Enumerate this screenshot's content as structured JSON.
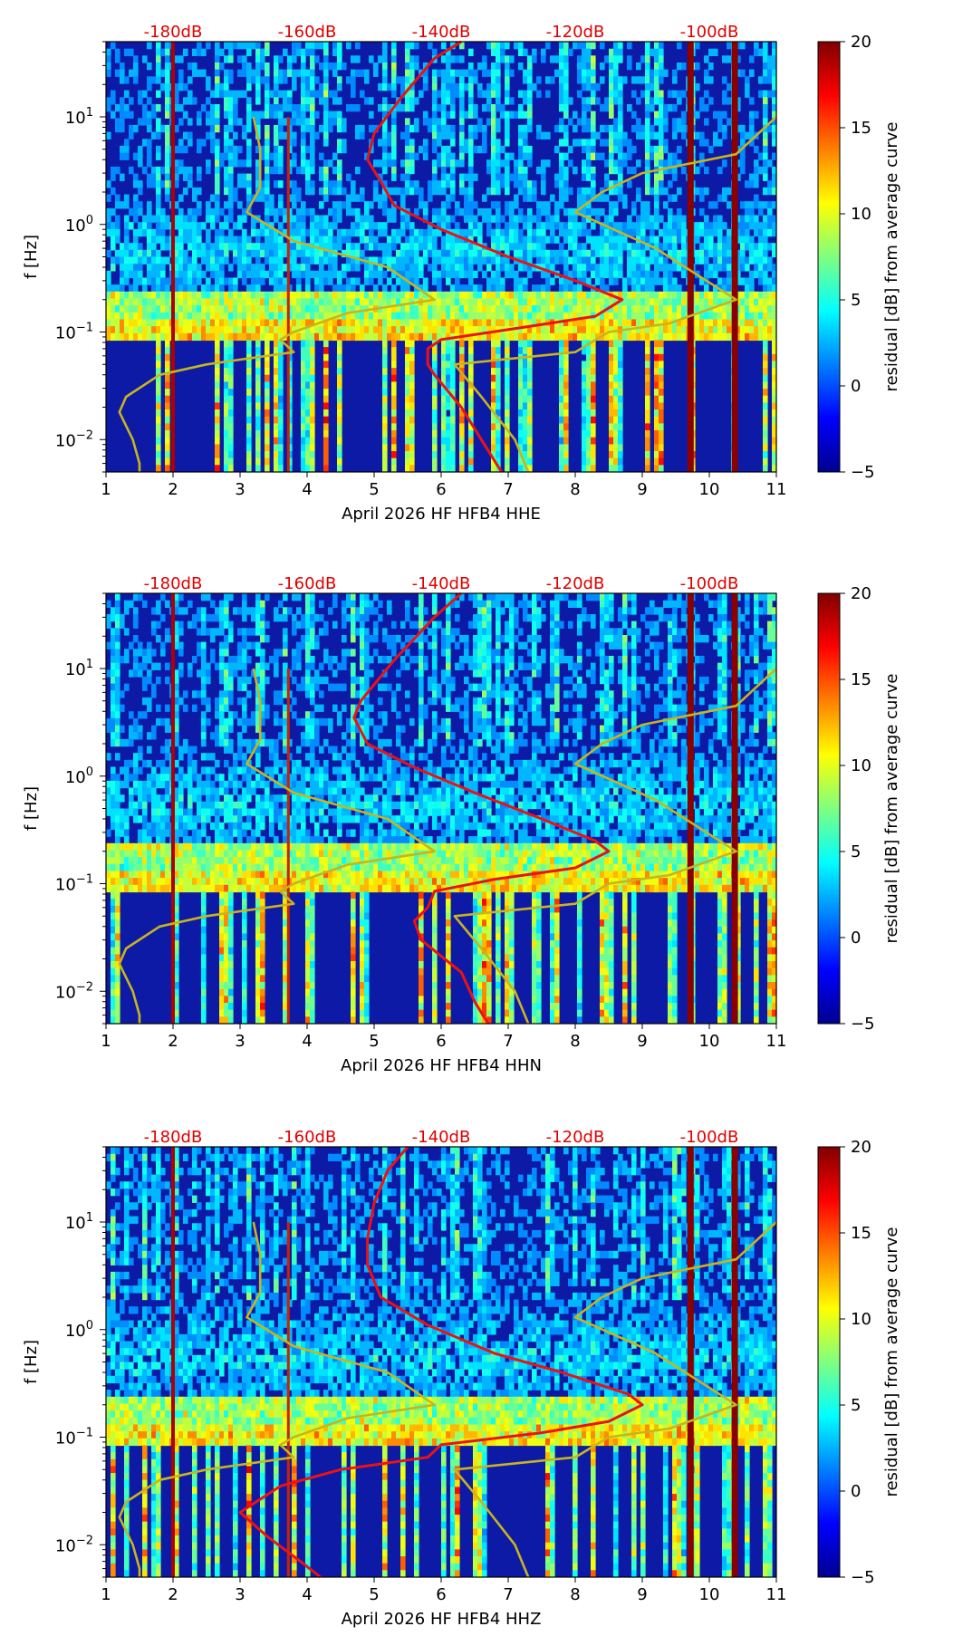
{
  "chart_data": [
    {
      "type": "heatmap",
      "xlabel": "April 2026 HF HFB4  HHE",
      "ylabel": "f [Hz]",
      "xlim": [
        1,
        11
      ],
      "ylim": [
        0.005,
        50
      ],
      "x_ticks": [
        "1",
        "2",
        "3",
        "4",
        "5",
        "6",
        "7",
        "8",
        "9",
        "10",
        "11"
      ],
      "y_ticks": [
        "10^-2",
        "10^-1",
        "10^0",
        "10^1"
      ],
      "db_ticks": [
        "-180dB",
        "-160dB",
        "-140dB",
        "-120dB",
        "-100dB"
      ],
      "colorbar": {
        "label": "residual [dB] from average curve",
        "range": [
          -5,
          20
        ],
        "ticks": [
          "-5",
          "0",
          "5",
          "10",
          "15",
          "20"
        ]
      },
      "hot_bands_hz": [
        0.11,
        0.2
      ],
      "series": [
        {
          "name": "median PSD (red)",
          "color": "#ee1111",
          "points": [
            [
              6.3,
              50
            ],
            [
              5.9,
              35
            ],
            [
              5.4,
              15
            ],
            [
              5.0,
              7
            ],
            [
              4.9,
              4
            ],
            [
              5.1,
              2.5
            ],
            [
              5.3,
              1.5
            ],
            [
              6.0,
              0.9
            ],
            [
              7.0,
              0.5
            ],
            [
              8.0,
              0.3
            ],
            [
              8.7,
              0.2
            ],
            [
              8.3,
              0.14
            ],
            [
              7.2,
              0.11
            ],
            [
              6.0,
              0.085
            ],
            [
              5.8,
              0.07
            ],
            [
              5.8,
              0.05
            ],
            [
              5.9,
              0.04
            ],
            [
              6.3,
              0.02
            ],
            [
              6.6,
              0.01
            ],
            [
              6.9,
              0.005
            ]
          ]
        },
        {
          "name": "NLNM (olive)",
          "color": "#c8b41e",
          "points": [
            [
              3.2,
              10
            ],
            [
              3.3,
              5
            ],
            [
              3.3,
              2.2
            ],
            [
              3.1,
              1.3
            ],
            [
              3.8,
              0.7
            ],
            [
              5.2,
              0.4
            ],
            [
              5.9,
              0.2
            ],
            [
              4.6,
              0.15
            ],
            [
              3.8,
              0.1
            ],
            [
              3.6,
              0.085
            ],
            [
              3.8,
              0.065
            ],
            [
              2.5,
              0.05
            ],
            [
              1.8,
              0.04
            ],
            [
              1.3,
              0.025
            ],
            [
              1.2,
              0.018
            ],
            [
              1.4,
              0.01
            ],
            [
              1.5,
              0.006
            ],
            [
              1.5,
              0.005
            ]
          ]
        },
        {
          "name": "NHNM (olive)",
          "color": "#c8b41e",
          "points": [
            [
              11,
              10
            ],
            [
              10.4,
              4.5
            ],
            [
              9,
              3
            ],
            [
              8.4,
              2
            ],
            [
              8,
              1.3
            ],
            [
              9.2,
              0.6
            ],
            [
              10.4,
              0.2
            ],
            [
              9.4,
              0.12
            ],
            [
              8.5,
              0.1
            ],
            [
              8.0,
              0.065
            ],
            [
              6.2,
              0.05
            ],
            [
              6.6,
              0.025
            ],
            [
              7.1,
              0.01
            ],
            [
              7.3,
              0.005
            ]
          ]
        }
      ]
    },
    {
      "type": "heatmap",
      "xlabel": "April 2026 HF HFB4  HHN",
      "ylabel": "f [Hz]",
      "xlim": [
        1,
        11
      ],
      "ylim": [
        0.005,
        50
      ],
      "x_ticks": [
        "1",
        "2",
        "3",
        "4",
        "5",
        "6",
        "7",
        "8",
        "9",
        "10",
        "11"
      ],
      "y_ticks": [
        "10^-2",
        "10^-1",
        "10^0",
        "10^1"
      ],
      "db_ticks": [
        "-180dB",
        "-160dB",
        "-140dB",
        "-120dB",
        "-100dB"
      ],
      "colorbar": {
        "label": "residual [dB] from average curve",
        "range": [
          -5,
          20
        ],
        "ticks": [
          "-5",
          "0",
          "5",
          "10",
          "15",
          "20"
        ]
      },
      "hot_bands_hz": [
        0.11,
        0.2
      ],
      "series": [
        {
          "name": "median PSD (red)",
          "color": "#ee1111",
          "points": [
            [
              6.3,
              50
            ],
            [
              5.9,
              30
            ],
            [
              5.3,
              12
            ],
            [
              4.8,
              5
            ],
            [
              4.7,
              3.5
            ],
            [
              4.9,
              2
            ],
            [
              5.6,
              1.2
            ],
            [
              6.5,
              0.7
            ],
            [
              7.5,
              0.4
            ],
            [
              8.3,
              0.25
            ],
            [
              8.5,
              0.2
            ],
            [
              8.0,
              0.14
            ],
            [
              6.8,
              0.11
            ],
            [
              5.9,
              0.085
            ],
            [
              5.8,
              0.06
            ],
            [
              5.6,
              0.045
            ],
            [
              5.7,
              0.03
            ],
            [
              6.3,
              0.015
            ],
            [
              6.5,
              0.008
            ],
            [
              6.7,
              0.005
            ]
          ]
        },
        {
          "name": "NLNM (olive)",
          "color": "#c8b41e",
          "points": [
            [
              3.2,
              10
            ],
            [
              3.3,
              5
            ],
            [
              3.3,
              2.2
            ],
            [
              3.1,
              1.3
            ],
            [
              3.8,
              0.7
            ],
            [
              5.2,
              0.4
            ],
            [
              5.9,
              0.2
            ],
            [
              4.6,
              0.15
            ],
            [
              3.8,
              0.1
            ],
            [
              3.6,
              0.085
            ],
            [
              3.8,
              0.065
            ],
            [
              2.5,
              0.05
            ],
            [
              1.8,
              0.04
            ],
            [
              1.3,
              0.025
            ],
            [
              1.2,
              0.018
            ],
            [
              1.4,
              0.01
            ],
            [
              1.5,
              0.006
            ],
            [
              1.5,
              0.005
            ]
          ]
        },
        {
          "name": "NHNM (olive)",
          "color": "#c8b41e",
          "points": [
            [
              11,
              10
            ],
            [
              10.4,
              4.5
            ],
            [
              9,
              3
            ],
            [
              8.4,
              2
            ],
            [
              8,
              1.3
            ],
            [
              9.2,
              0.6
            ],
            [
              10.4,
              0.2
            ],
            [
              9.4,
              0.12
            ],
            [
              8.5,
              0.1
            ],
            [
              8.0,
              0.065
            ],
            [
              6.2,
              0.05
            ],
            [
              6.6,
              0.025
            ],
            [
              7.1,
              0.01
            ],
            [
              7.3,
              0.005
            ]
          ]
        }
      ]
    },
    {
      "type": "heatmap",
      "xlabel": "April 2026 HF HFB4  HHZ",
      "ylabel": "f [Hz]",
      "xlim": [
        1,
        11
      ],
      "ylim": [
        0.005,
        50
      ],
      "x_ticks": [
        "1",
        "2",
        "3",
        "4",
        "5",
        "6",
        "7",
        "8",
        "9",
        "10",
        "11"
      ],
      "y_ticks": [
        "10^-2",
        "10^-1",
        "10^0",
        "10^1"
      ],
      "db_ticks": [
        "-180dB",
        "-160dB",
        "-140dB",
        "-120dB",
        "-100dB"
      ],
      "colorbar": {
        "label": "residual [dB] from average curve",
        "range": [
          -5,
          20
        ],
        "ticks": [
          "-5",
          "0",
          "5",
          "10",
          "15",
          "20"
        ]
      },
      "hot_bands_hz": [
        0.11,
        0.2
      ],
      "series": [
        {
          "name": "median PSD (red)",
          "color": "#ee1111",
          "points": [
            [
              5.5,
              50
            ],
            [
              5.2,
              30
            ],
            [
              5.0,
              15
            ],
            [
              4.9,
              7
            ],
            [
              4.9,
              4
            ],
            [
              5.1,
              2
            ],
            [
              5.8,
              1.1
            ],
            [
              6.8,
              0.6
            ],
            [
              7.8,
              0.4
            ],
            [
              8.8,
              0.25
            ],
            [
              9.0,
              0.2
            ],
            [
              8.5,
              0.14
            ],
            [
              7.5,
              0.11
            ],
            [
              6.0,
              0.085
            ],
            [
              5.8,
              0.065
            ],
            [
              4.5,
              0.05
            ],
            [
              3.6,
              0.035
            ],
            [
              3.0,
              0.02
            ],
            [
              3.4,
              0.012
            ],
            [
              3.9,
              0.007
            ],
            [
              4.2,
              0.005
            ]
          ]
        },
        {
          "name": "NLNM (olive)",
          "color": "#c8b41e",
          "points": [
            [
              3.2,
              10
            ],
            [
              3.3,
              5
            ],
            [
              3.3,
              2.2
            ],
            [
              3.1,
              1.3
            ],
            [
              3.8,
              0.7
            ],
            [
              5.2,
              0.4
            ],
            [
              5.9,
              0.2
            ],
            [
              4.6,
              0.15
            ],
            [
              3.8,
              0.1
            ],
            [
              3.6,
              0.085
            ],
            [
              3.8,
              0.065
            ],
            [
              2.5,
              0.05
            ],
            [
              1.8,
              0.04
            ],
            [
              1.3,
              0.025
            ],
            [
              1.2,
              0.018
            ],
            [
              1.4,
              0.01
            ],
            [
              1.5,
              0.006
            ],
            [
              1.5,
              0.005
            ]
          ]
        },
        {
          "name": "NHNM (olive)",
          "color": "#c8b41e",
          "points": [
            [
              11,
              10
            ],
            [
              10.4,
              4.5
            ],
            [
              9,
              3
            ],
            [
              8.4,
              2
            ],
            [
              8,
              1.3
            ],
            [
              9.2,
              0.6
            ],
            [
              10.4,
              0.2
            ],
            [
              9.4,
              0.12
            ],
            [
              8.5,
              0.1
            ],
            [
              8.0,
              0.065
            ],
            [
              6.2,
              0.05
            ],
            [
              6.6,
              0.025
            ],
            [
              7.1,
              0.01
            ],
            [
              7.3,
              0.005
            ]
          ]
        }
      ]
    }
  ]
}
